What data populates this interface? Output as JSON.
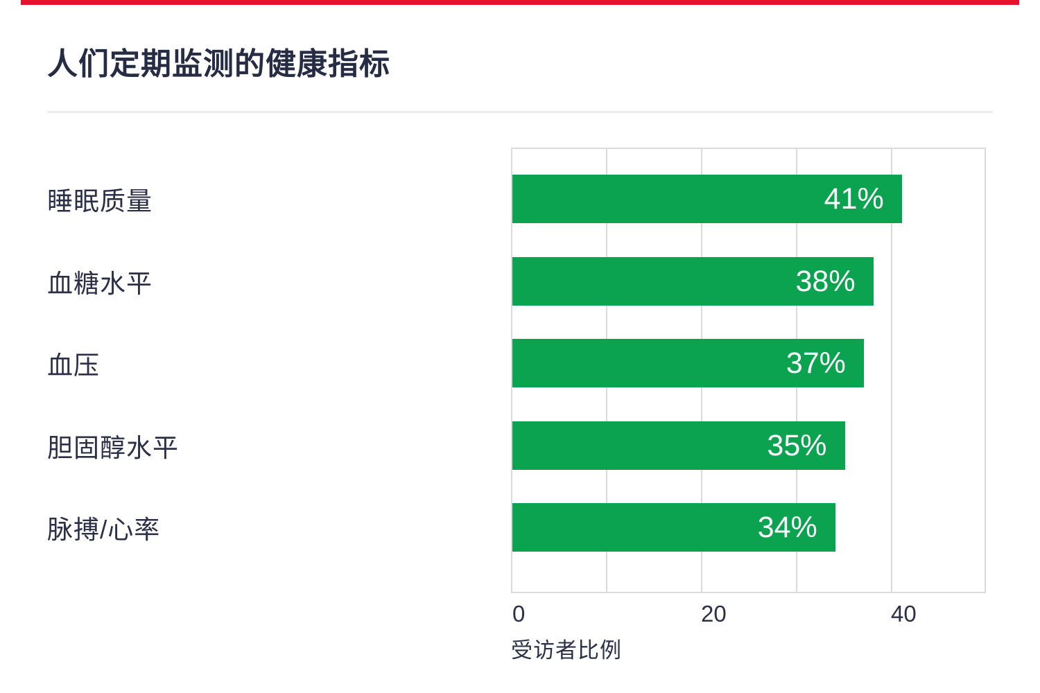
{
  "header": {
    "title": "人们定期监测的健康指标"
  },
  "accent_colors": {
    "top_bar_red": "#e8112d",
    "bar_green": "#0ba350",
    "text_navy": "#2b3048"
  },
  "chart_data": {
    "type": "bar",
    "orientation": "horizontal",
    "title": "人们定期监测的健康指标",
    "categories": [
      "睡眠质量",
      "血糖水平",
      "血压",
      "胆固醇水平",
      "脉搏/心率"
    ],
    "values": [
      41,
      38,
      37,
      35,
      34
    ],
    "value_labels": [
      "41%",
      "38%",
      "37%",
      "35%",
      "34%"
    ],
    "value_label_position": "inside-end",
    "value_label_color": "#ffffff",
    "bar_color": "#0ba350",
    "xlabel": "受访者比例",
    "ylabel": "",
    "xlim": [
      0,
      50
    ],
    "xticks": [
      0,
      20,
      40
    ],
    "xtick_labels": [
      "0",
      "20",
      "40"
    ],
    "grid": "vertical gridlines every 10, light gray, plot area outlined",
    "legend": "none"
  }
}
